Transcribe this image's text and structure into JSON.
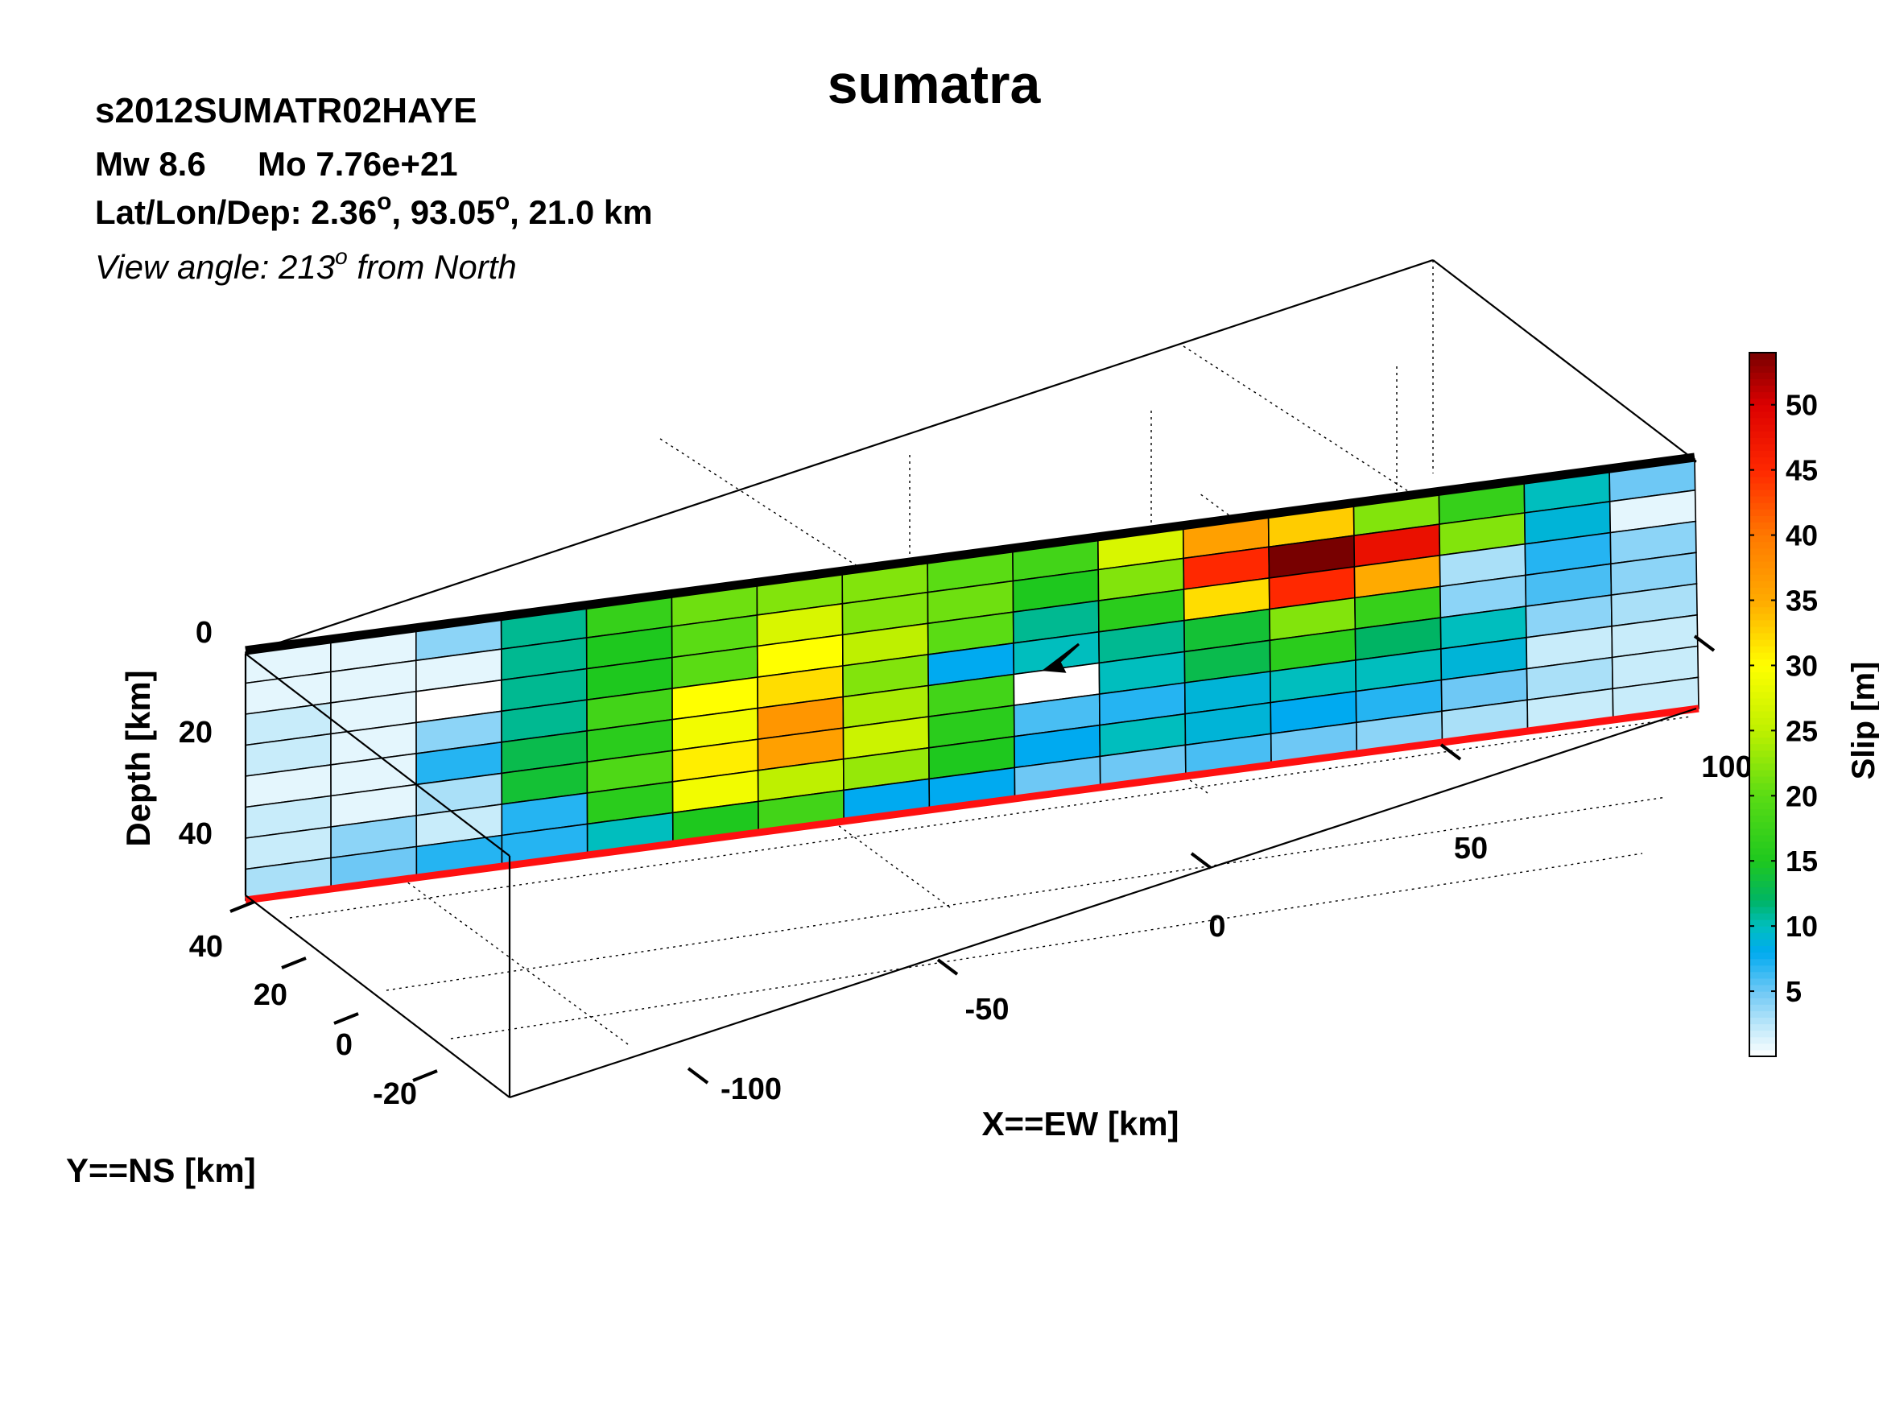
{
  "header": {
    "title": "sumatra",
    "event_id": "s2012SUMATR02HAYE",
    "mw": "Mw 8.6",
    "mo": "Mo 7.76e+21",
    "location_prefix": "Lat/Lon/Dep: 2.36",
    "location_lon": ", 93.05",
    "location_dep": ", 21.0 km",
    "degree_symbol": "o",
    "view_prefix": "View angle: 213",
    "view_suffix": " from North"
  },
  "chart_data": {
    "type": "heatmap",
    "title": "sumatra",
    "xlabel": "X==EW [km]",
    "ylabel": "Y==NS [km]",
    "zlabel": "Depth [km]",
    "colorbar_label": "Slip [m]",
    "x_ticks": [
      "-100",
      "-50",
      "0",
      "50",
      "100"
    ],
    "y_ticks": [
      "40",
      "20",
      "0",
      "-20"
    ],
    "z_ticks": [
      "0",
      "20",
      "40"
    ],
    "colorbar_ticks": [
      "5",
      "10",
      "15",
      "20",
      "25",
      "30",
      "35",
      "40",
      "45",
      "50"
    ],
    "colorbar_range": [
      0,
      54
    ],
    "grid": "dotted",
    "view_azimuth_deg": 213,
    "fault_cols": 17,
    "fault_rows": 8,
    "slip": [
      [
        1,
        1,
        4,
        11,
        17,
        21,
        22,
        22,
        20,
        18,
        27,
        36,
        33,
        22,
        17,
        10,
        5
      ],
      [
        1,
        1,
        1,
        11,
        15,
        20,
        27,
        22,
        21,
        15,
        22,
        45,
        54,
        48,
        22,
        9,
        1
      ],
      [
        2,
        1,
        0,
        11,
        15,
        20,
        30,
        25,
        20,
        11,
        16,
        32,
        45,
        35,
        3,
        7,
        4
      ],
      [
        2,
        1,
        4,
        11,
        18,
        30,
        32,
        22,
        8,
        10,
        11,
        14,
        22,
        17,
        4,
        6,
        4
      ],
      [
        1,
        1,
        7,
        13,
        16,
        29,
        37,
        24,
        18,
        0,
        10,
        13,
        16,
        12,
        10,
        4,
        3
      ],
      [
        2,
        1,
        3,
        14,
        19,
        31,
        36,
        26,
        16,
        6,
        7,
        9,
        10,
        10,
        9,
        2,
        2
      ],
      [
        2,
        4,
        2,
        7,
        16,
        29,
        25,
        23,
        15,
        8,
        10,
        9,
        8,
        7,
        5,
        3,
        2
      ],
      [
        3,
        5,
        7,
        7,
        10,
        15,
        18,
        8,
        8,
        5,
        5,
        6,
        5,
        4,
        3,
        2,
        2
      ]
    ]
  }
}
